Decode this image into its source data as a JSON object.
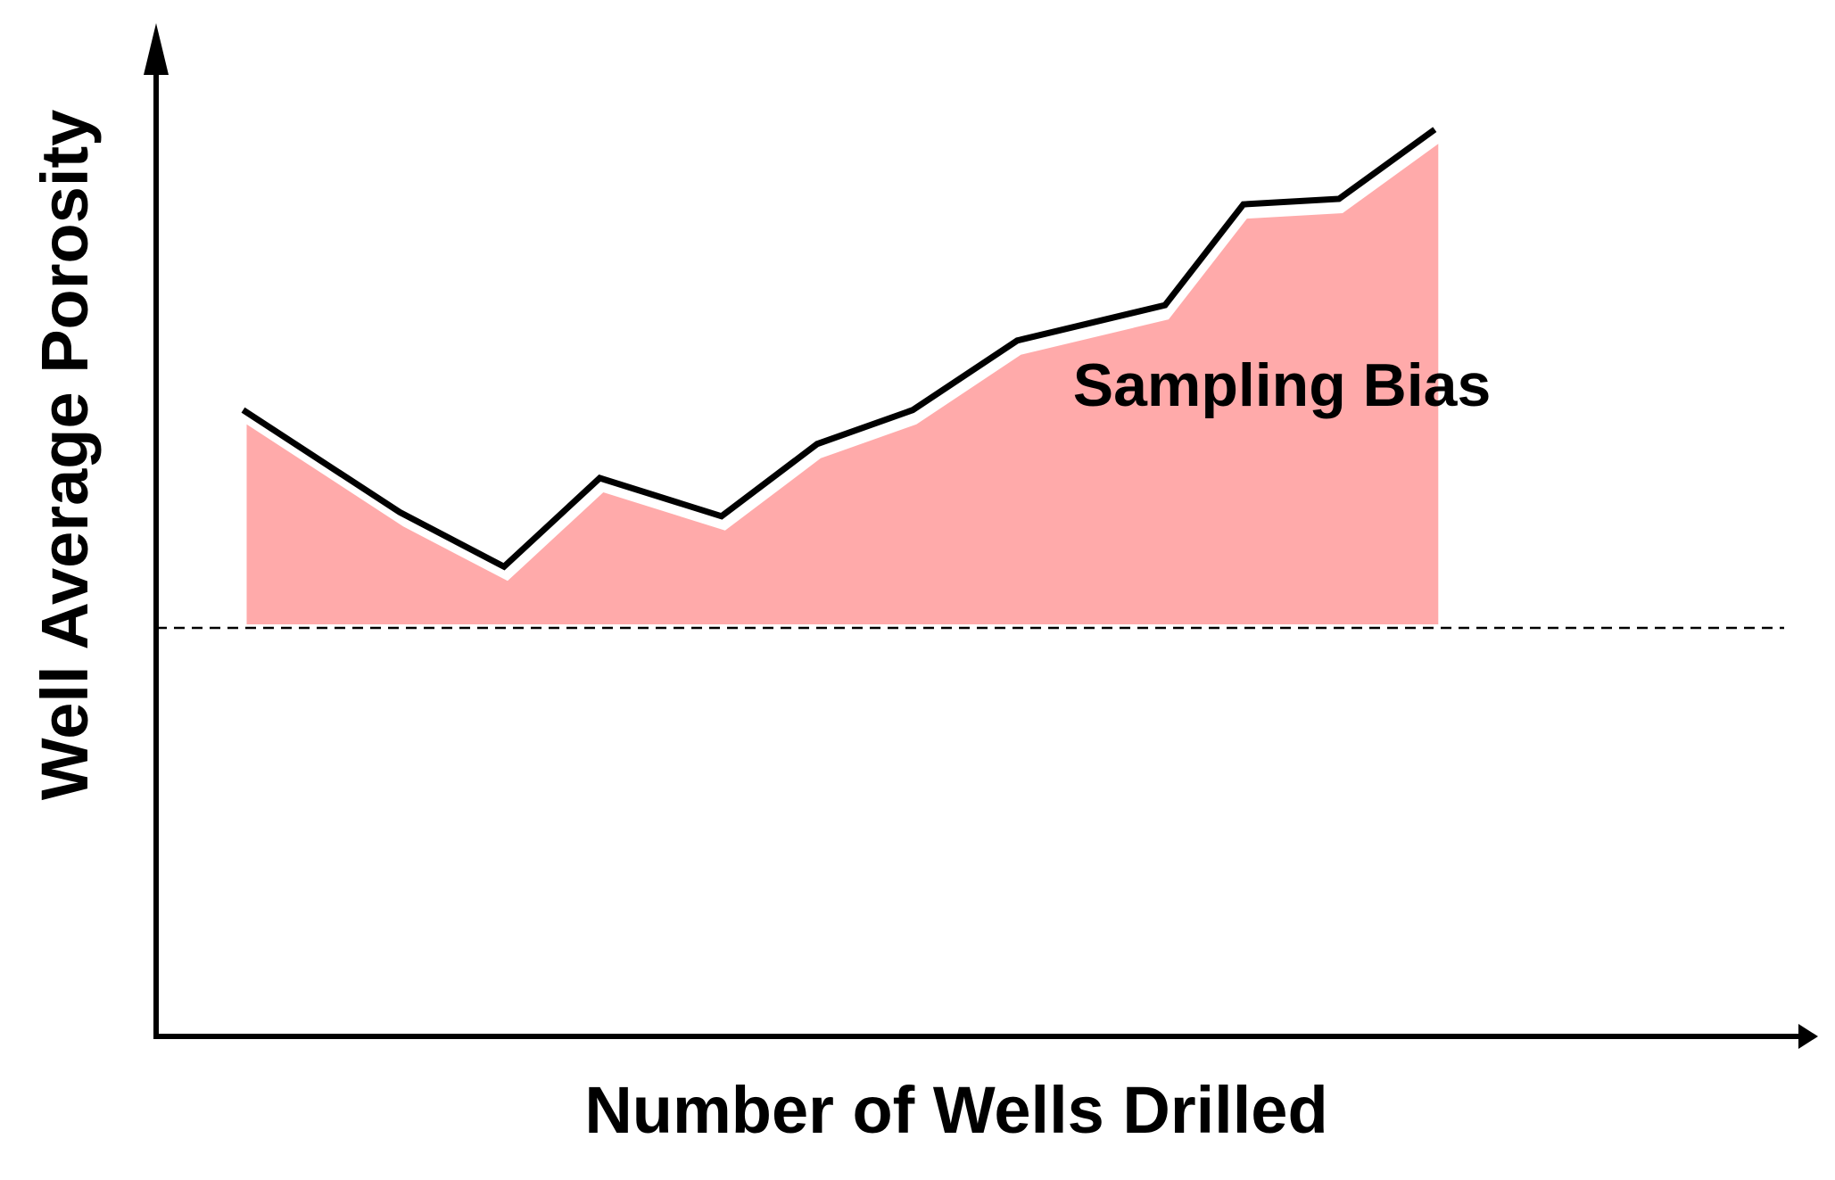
{
  "chart_data": {
    "type": "line",
    "xlabel": "Number of Wells Drilled",
    "ylabel": "Well Average Porosity",
    "annotation": "Sampling Bias",
    "xlim": [
      0,
      14
    ],
    "ylim": [
      0,
      1
    ],
    "grid": false,
    "x": [
      1,
      2.8,
      4,
      5.1,
      6.5,
      7.6,
      8.7,
      9.9,
      11.6,
      12.5,
      13.6,
      14.7
    ],
    "series": [
      {
        "values": [
          0.66,
          0.585,
          0.545,
          0.61,
          0.582,
          0.635,
          0.66,
          0.711,
          0.737,
          0.811,
          0.815,
          0.866
        ]
      }
    ],
    "reference_line": {
      "value": 0.5,
      "style": "dashed"
    },
    "colors": {
      "line": "#000000",
      "bias_fill": "#ffaaaa",
      "axis": "#000000"
    }
  }
}
